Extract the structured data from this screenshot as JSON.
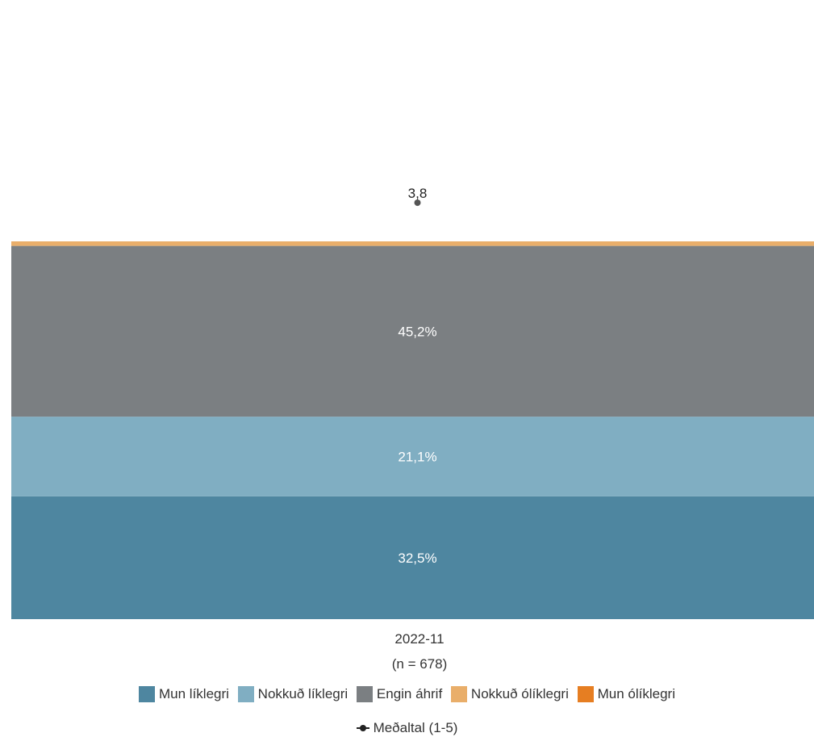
{
  "chart_data": {
    "type": "bar",
    "stacked": true,
    "categories": [
      "2022-11"
    ],
    "category_sublabels": [
      "(n = 678)"
    ],
    "y_unit": "%",
    "ylim": [
      0,
      100
    ],
    "series": [
      {
        "name": "Mun líklegri",
        "values": [
          32.5
        ],
        "labels": [
          "32,5%"
        ],
        "color": "#4e86a0"
      },
      {
        "name": "Nokkuð líklegri",
        "values": [
          21.1
        ],
        "labels": [
          "21,1%"
        ],
        "color": "#80aec2"
      },
      {
        "name": "Engin áhrif",
        "values": [
          45.2
        ],
        "labels": [
          "45,2%"
        ],
        "color": "#7b7f82"
      },
      {
        "name": "Nokkuð ólíklegri",
        "values": [
          1.2
        ],
        "labels": [
          ""
        ],
        "color": "#e9ae6a"
      },
      {
        "name": "Mun ólíklegri",
        "values": [
          0.0
        ],
        "labels": [
          ""
        ],
        "color": "#e67e22"
      }
    ],
    "mean_series": {
      "name": "Meðaltal (1-5)",
      "values": [
        3.8
      ],
      "labels": [
        "3,8"
      ],
      "scale": [
        1,
        5
      ]
    },
    "grid": false,
    "legend_position": "bottom"
  }
}
